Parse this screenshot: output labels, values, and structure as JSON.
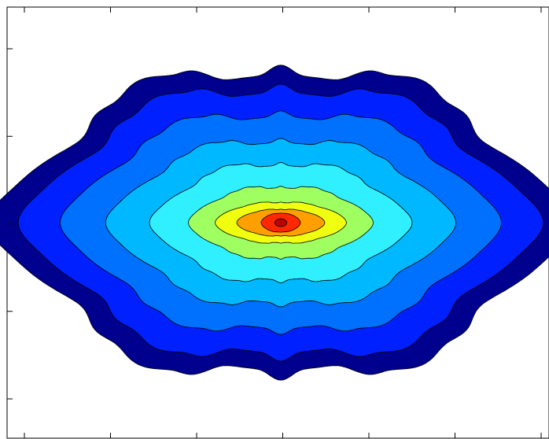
{
  "chart_data": {
    "type": "contourf",
    "title": "",
    "xlabel": "",
    "ylabel": "",
    "colormap": "jet",
    "grid": false,
    "legend": "none",
    "x_ticks_count": 7,
    "y_ticks_count": 5,
    "levels": [
      {
        "level": 1,
        "color": "#00008f",
        "extent_x": 0.91,
        "extent_y": 0.8,
        "spike": 0.42
      },
      {
        "level": 2,
        "color": "#0020ff",
        "extent_x": 0.82,
        "extent_y": 0.7,
        "spike": 0.4
      },
      {
        "level": 3,
        "color": "#0070ff",
        "extent_x": 0.7,
        "extent_y": 0.56,
        "spike": 0.36
      },
      {
        "level": 4,
        "color": "#00b8ff",
        "extent_x": 0.56,
        "extent_y": 0.42,
        "spike": 0.34
      },
      {
        "level": 5,
        "color": "#30f0ff",
        "extent_x": 0.42,
        "extent_y": 0.3,
        "spike": 0.34
      },
      {
        "level": 6,
        "color": "#a0ff60",
        "extent_x": 0.3,
        "extent_y": 0.18,
        "spike": 0.3
      },
      {
        "level": 7,
        "color": "#f0ff10",
        "extent_x": 0.22,
        "extent_y": 0.1,
        "spike": 0.22
      },
      {
        "level": 8,
        "color": "#ffa000",
        "extent_x": 0.15,
        "extent_y": 0.065,
        "spike": 0.18
      },
      {
        "level": 9,
        "color": "#ff2800",
        "extent_x": 0.07,
        "extent_y": 0.045,
        "spike": 0.08
      },
      {
        "level": 10,
        "color": "#c00000",
        "extent_x": 0.022,
        "extent_y": 0.018,
        "spike": 0.0
      }
    ]
  }
}
